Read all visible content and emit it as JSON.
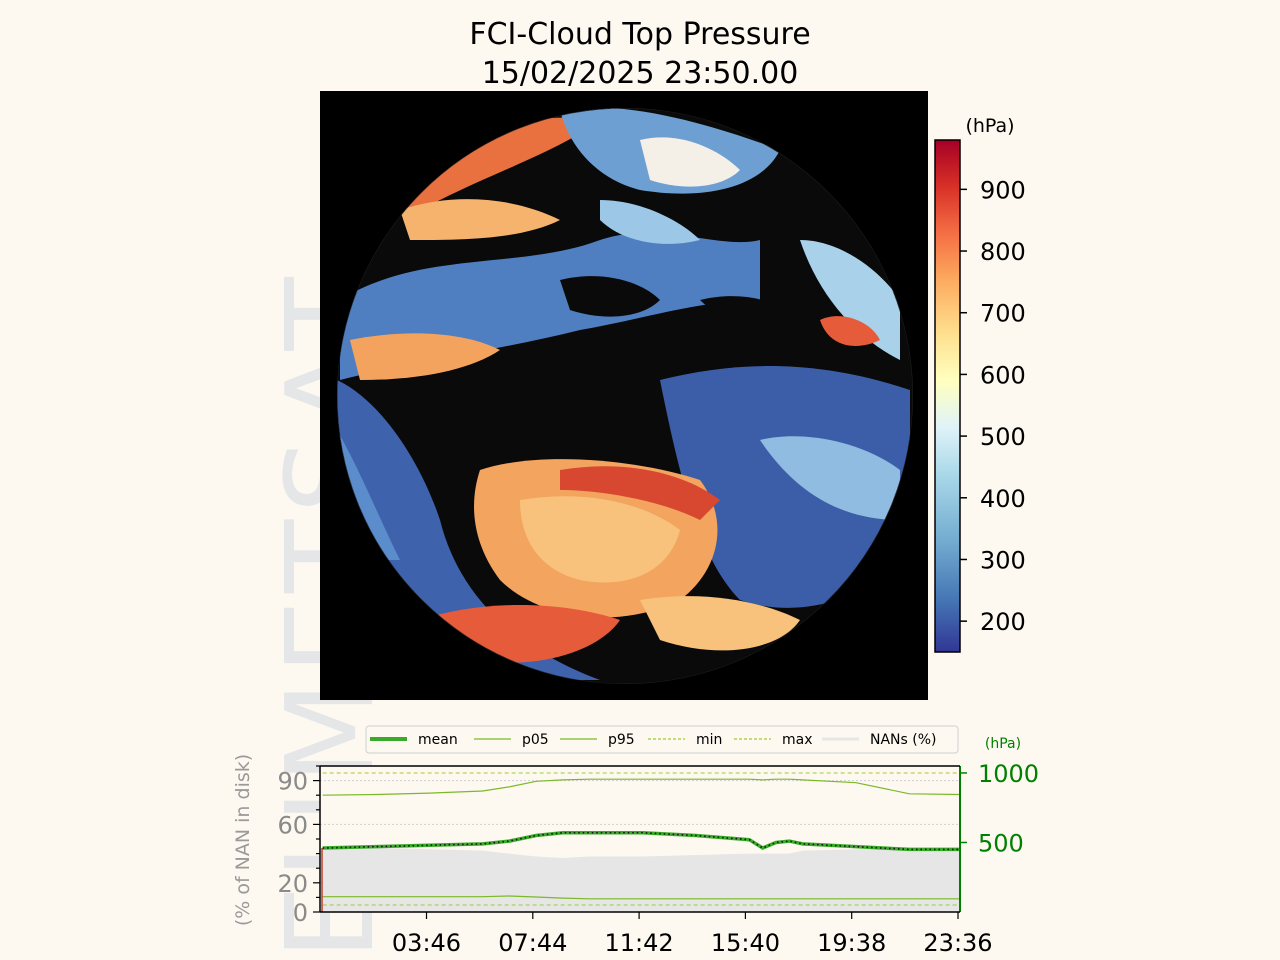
{
  "watermark": "EUMETSAT",
  "chart_data": [
    {
      "type": "heatmap",
      "title": "FCI-Cloud Top Pressure",
      "subtitle": "15/02/2025 23:50.00",
      "colorbar": {
        "unit": "(hPa)",
        "ticks": [
          200,
          300,
          400,
          500,
          600,
          700,
          800,
          900
        ],
        "range": [
          150,
          980
        ],
        "colors": [
          "#313695",
          "#4575b4",
          "#74add1",
          "#abd9e9",
          "#e0f3f8",
          "#ffffbf",
          "#fee090",
          "#fdae61",
          "#f46d43",
          "#d73027",
          "#a50026"
        ]
      },
      "disk_background": "#000000"
    },
    {
      "type": "line",
      "legend": {
        "placement": "top",
        "entries": [
          {
            "label": "mean",
            "color": "#3aaa2a"
          },
          {
            "label": "p05",
            "color": "#7cb82a"
          },
          {
            "label": "p95",
            "color": "#7cb82a"
          },
          {
            "label": "min",
            "color": "#9acd32"
          },
          {
            "label": "max",
            "color": "#9acd32"
          },
          {
            "label": "NANs (%)",
            "color": "#e6e6e6"
          }
        ]
      },
      "xticks": [
        "03:46",
        "07:44",
        "11:42",
        "15:40",
        "19:38",
        "23:36"
      ],
      "x_hours": [
        0,
        2,
        4,
        6,
        7,
        8,
        9,
        10,
        12,
        14,
        16,
        16.5,
        17,
        17.5,
        18,
        20,
        22,
        24
      ],
      "xlim": [
        -0.1,
        23.9
      ],
      "left_axis": {
        "label": "(% of NAN in disk)",
        "ticks": [
          0,
          20,
          60,
          90
        ],
        "range": [
          0,
          100
        ]
      },
      "right_axis": {
        "unit": "(hPa)",
        "ticks": [
          500,
          1000
        ],
        "range": [
          0,
          1050
        ]
      },
      "series": [
        {
          "name": "mean",
          "axis": "right",
          "values": [
            460,
            470,
            480,
            490,
            510,
            550,
            570,
            570,
            570,
            550,
            520,
            460,
            500,
            510,
            490,
            470,
            450,
            450
          ]
        },
        {
          "name": "p05",
          "axis": "right",
          "values": [
            110,
            110,
            110,
            110,
            115,
            108,
            100,
            95,
            95,
            95,
            95,
            95,
            95,
            95,
            95,
            95,
            95,
            95
          ]
        },
        {
          "name": "p95",
          "axis": "right",
          "values": [
            840,
            845,
            855,
            870,
            900,
            940,
            950,
            955,
            955,
            955,
            955,
            950,
            955,
            955,
            950,
            930,
            850,
            845
          ]
        },
        {
          "name": "min",
          "axis": "right",
          "values": [
            50,
            50,
            50,
            50,
            50,
            50,
            50,
            50,
            50,
            50,
            50,
            50,
            50,
            50,
            50,
            50,
            50,
            50
          ]
        },
        {
          "name": "max",
          "axis": "right",
          "values": [
            1000,
            1000,
            1000,
            1000,
            1000,
            1000,
            1000,
            1000,
            1000,
            1000,
            1000,
            1000,
            1000,
            1000,
            1000,
            1000,
            1000,
            1000
          ]
        },
        {
          "name": "NANs (%)",
          "axis": "left",
          "values": [
            44,
            44,
            43,
            42,
            40,
            38,
            37,
            38,
            38,
            39,
            40,
            40,
            40,
            40,
            42,
            43,
            44,
            44
          ]
        }
      ]
    }
  ]
}
